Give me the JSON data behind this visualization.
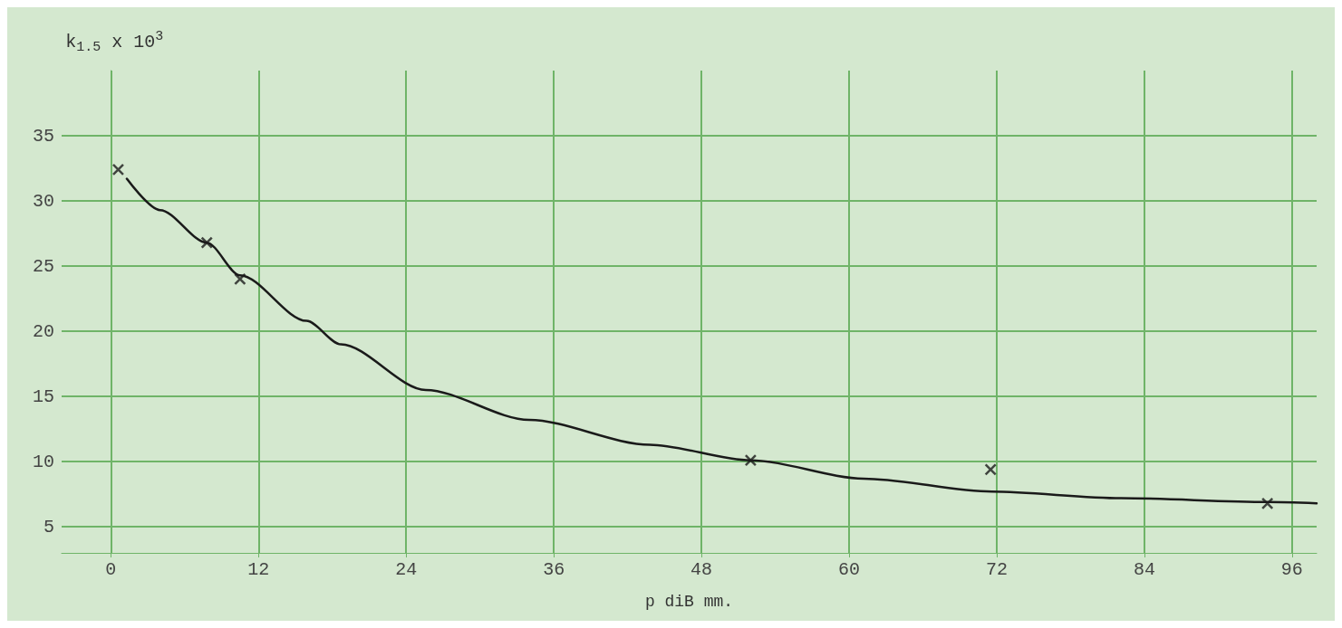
{
  "chart_data": {
    "type": "scatter",
    "xlabel": "p diB mm.",
    "ylabel": "k$_{1.5}$ x 10$^{3}$",
    "xlim": [
      -4,
      98
    ],
    "ylim": [
      3,
      40
    ],
    "xticks": [
      0,
      12,
      24,
      36,
      48,
      60,
      72,
      84,
      96
    ],
    "yticks": [
      5,
      10,
      15,
      20,
      25,
      30,
      35
    ],
    "grid": true,
    "series": [
      {
        "marker": "cross",
        "color": "#1a1a1a",
        "x": [
          0.6,
          7.8,
          10.5,
          52,
          71.5,
          94
        ],
        "values": [
          32.4,
          26.8,
          24.0,
          10.1,
          9.4,
          6.8
        ]
      },
      {
        "type": "line",
        "marker": "none",
        "line_style": "solid",
        "color": "#1a1a1a",
        "x": [
          1.3,
          4,
          7.8,
          10.5,
          15.9,
          18.7,
          25.6,
          34,
          43.8,
          52,
          61.2,
          71.6,
          82.1,
          94,
          98
        ],
        "values": [
          31.7,
          29.3,
          26.8,
          24.3,
          20.8,
          19.0,
          15.5,
          13.2,
          11.3,
          10.1,
          8.7,
          7.7,
          7.2,
          6.9,
          6.8
        ]
      }
    ]
  }
}
